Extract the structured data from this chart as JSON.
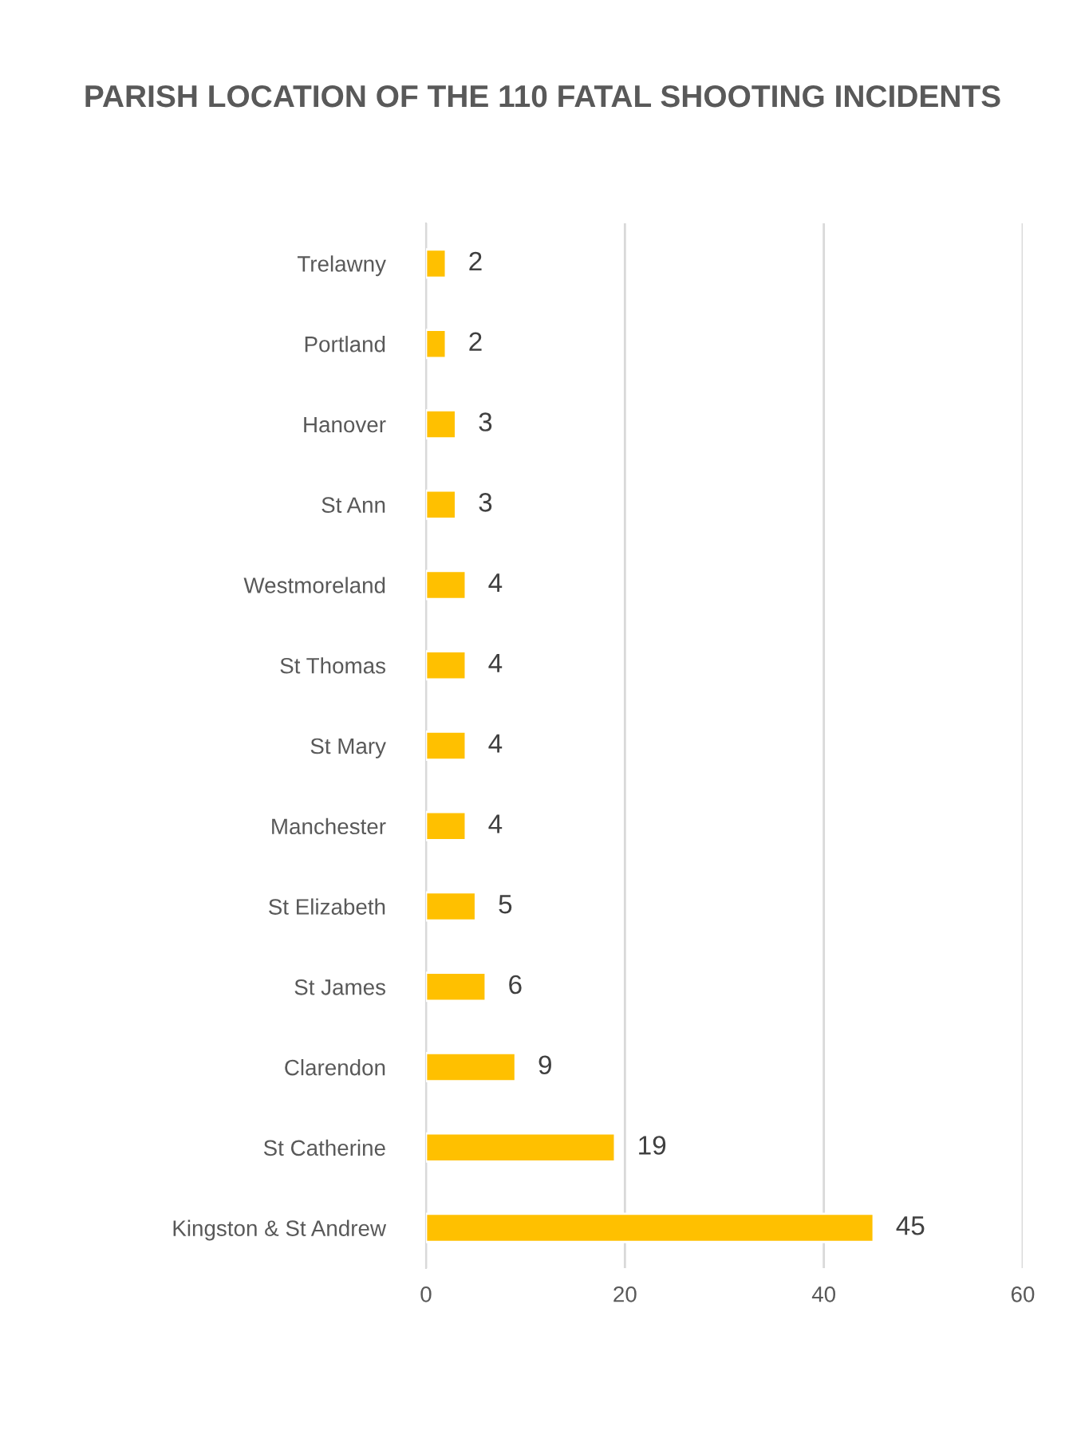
{
  "chart_data": {
    "type": "bar",
    "orientation": "horizontal",
    "title": "PARISH LOCATION OF THE 110 FATAL SHOOTING INCIDENTS",
    "categories": [
      "Trelawny",
      "Portland",
      "Hanover",
      "St Ann",
      "Westmoreland",
      "St Thomas",
      "St Mary",
      "Manchester",
      "St Elizabeth",
      "St James",
      "Clarendon",
      "St Catherine",
      "Kingston & St Andrew"
    ],
    "values": [
      2,
      2,
      3,
      3,
      4,
      4,
      4,
      4,
      5,
      6,
      9,
      19,
      45
    ],
    "color": "#ffc000",
    "xlim": [
      0,
      60
    ],
    "xticks": [
      0,
      20,
      40,
      60
    ],
    "grid": "x",
    "data_labels": true,
    "legend": false
  }
}
